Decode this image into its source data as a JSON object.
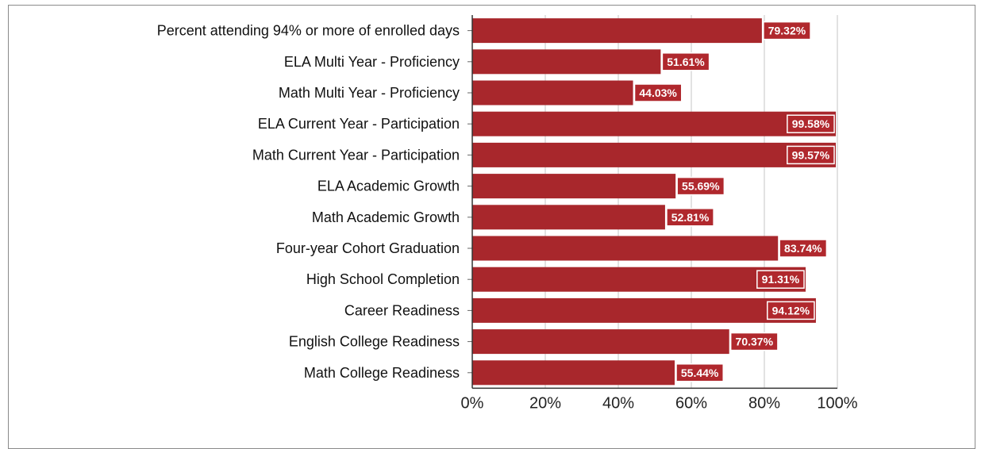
{
  "chart_data": {
    "type": "bar",
    "orientation": "horizontal",
    "categories": [
      "Percent attending 94% or more of enrolled days",
      "ELA Multi Year - Proficiency",
      "Math Multi Year - Proficiency",
      "ELA Current Year - Participation",
      "Math Current Year - Participation",
      "ELA Academic Growth",
      "Math Academic Growth",
      "Four-year Cohort Graduation",
      "High School Completion",
      "Career Readiness",
      "English College Readiness",
      "Math College Readiness"
    ],
    "values": [
      79.32,
      51.61,
      44.03,
      99.58,
      99.57,
      55.69,
      52.81,
      83.74,
      91.31,
      94.12,
      70.37,
      55.44
    ],
    "value_labels": [
      "79.32%",
      "51.61%",
      "44.03%",
      "99.58%",
      "99.57%",
      "55.69%",
      "52.81%",
      "83.74%",
      "91.31%",
      "94.12%",
      "70.37%",
      "55.44%"
    ],
    "xlim": [
      0,
      100
    ],
    "x_ticks": [
      0,
      20,
      40,
      60,
      80,
      100
    ],
    "x_tick_labels": [
      "0%",
      "20%",
      "40%",
      "60%",
      "80%",
      "100%"
    ],
    "grid": true,
    "bar_color": "#a8272c",
    "label_bg_color": "#b0282d",
    "grid_color": "#d9d9d9",
    "axis_color": "#333333"
  }
}
